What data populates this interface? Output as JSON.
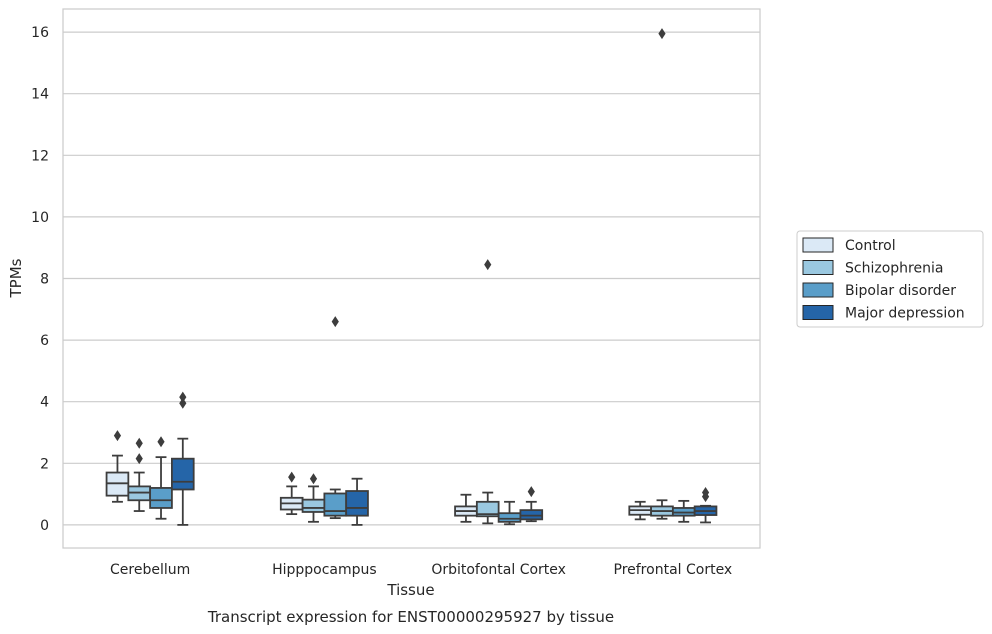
{
  "chart_data": {
    "type": "box",
    "title": "Transcript expression for ENST00000295927 by tissue",
    "xlabel": "Tissue",
    "ylabel": "TPMs",
    "ylim": [
      -0.75,
      16.75
    ],
    "yticks": [
      0,
      2,
      4,
      6,
      8,
      10,
      12,
      14,
      16
    ],
    "grid": "horizontal",
    "legend_position": "right",
    "categories": [
      "Cerebellum",
      "Hipppocampus",
      "Orbitofontal Cortex",
      "Prefrontal Cortex"
    ],
    "series": [
      {
        "name": "Control",
        "color": "#dbe9f6",
        "boxes": [
          {
            "whislo": 0.75,
            "q1": 0.95,
            "med": 1.35,
            "q3": 1.7,
            "whishi": 2.25,
            "fliers": [
              2.9
            ]
          },
          {
            "whislo": 0.35,
            "q1": 0.5,
            "med": 0.7,
            "q3": 0.88,
            "whishi": 1.25,
            "fliers": [
              1.55
            ]
          },
          {
            "whislo": 0.1,
            "q1": 0.3,
            "med": 0.45,
            "q3": 0.6,
            "whishi": 0.98,
            "fliers": []
          },
          {
            "whislo": 0.18,
            "q1": 0.33,
            "med": 0.48,
            "q3": 0.6,
            "whishi": 0.75,
            "fliers": []
          }
        ]
      },
      {
        "name": "Schizophrenia",
        "color": "#9ac8e0",
        "boxes": [
          {
            "whislo": 0.45,
            "q1": 0.8,
            "med": 1.05,
            "q3": 1.25,
            "whishi": 1.7,
            "fliers": [
              2.15,
              2.65
            ]
          },
          {
            "whislo": 0.1,
            "q1": 0.42,
            "med": 0.55,
            "q3": 0.82,
            "whishi": 1.25,
            "fliers": [
              1.5
            ]
          },
          {
            "whislo": 0.05,
            "q1": 0.28,
            "med": 0.35,
            "q3": 0.75,
            "whishi": 1.05,
            "fliers": [
              8.45
            ]
          },
          {
            "whislo": 0.2,
            "q1": 0.3,
            "med": 0.45,
            "q3": 0.6,
            "whishi": 0.8,
            "fliers": [
              15.95
            ]
          }
        ]
      },
      {
        "name": "Bipolar disorder",
        "color": "#5a9ec9",
        "boxes": [
          {
            "whislo": 0.2,
            "q1": 0.55,
            "med": 0.8,
            "q3": 1.2,
            "whishi": 2.2,
            "fliers": [
              2.7
            ]
          },
          {
            "whislo": 0.22,
            "q1": 0.3,
            "med": 0.45,
            "q3": 1.02,
            "whishi": 1.15,
            "fliers": [
              6.6
            ]
          },
          {
            "whislo": 0.02,
            "q1": 0.1,
            "med": 0.2,
            "q3": 0.38,
            "whishi": 0.75,
            "fliers": []
          },
          {
            "whislo": 0.1,
            "q1": 0.3,
            "med": 0.4,
            "q3": 0.55,
            "whishi": 0.78,
            "fliers": []
          }
        ]
      },
      {
        "name": "Major depression",
        "color": "#2565a8",
        "boxes": [
          {
            "whislo": 0.0,
            "q1": 1.15,
            "med": 1.4,
            "q3": 2.15,
            "whishi": 2.8,
            "fliers": [
              3.95,
              4.15
            ]
          },
          {
            "whislo": 0.0,
            "q1": 0.3,
            "med": 0.55,
            "q3": 1.1,
            "whishi": 1.5,
            "fliers": []
          },
          {
            "whislo": 0.12,
            "q1": 0.18,
            "med": 0.3,
            "q3": 0.48,
            "whishi": 0.75,
            "fliers": [
              1.08
            ]
          },
          {
            "whislo": 0.08,
            "q1": 0.32,
            "med": 0.45,
            "q3": 0.6,
            "whishi": 0.62,
            "fliers": [
              0.92,
              1.05
            ]
          }
        ]
      }
    ]
  }
}
